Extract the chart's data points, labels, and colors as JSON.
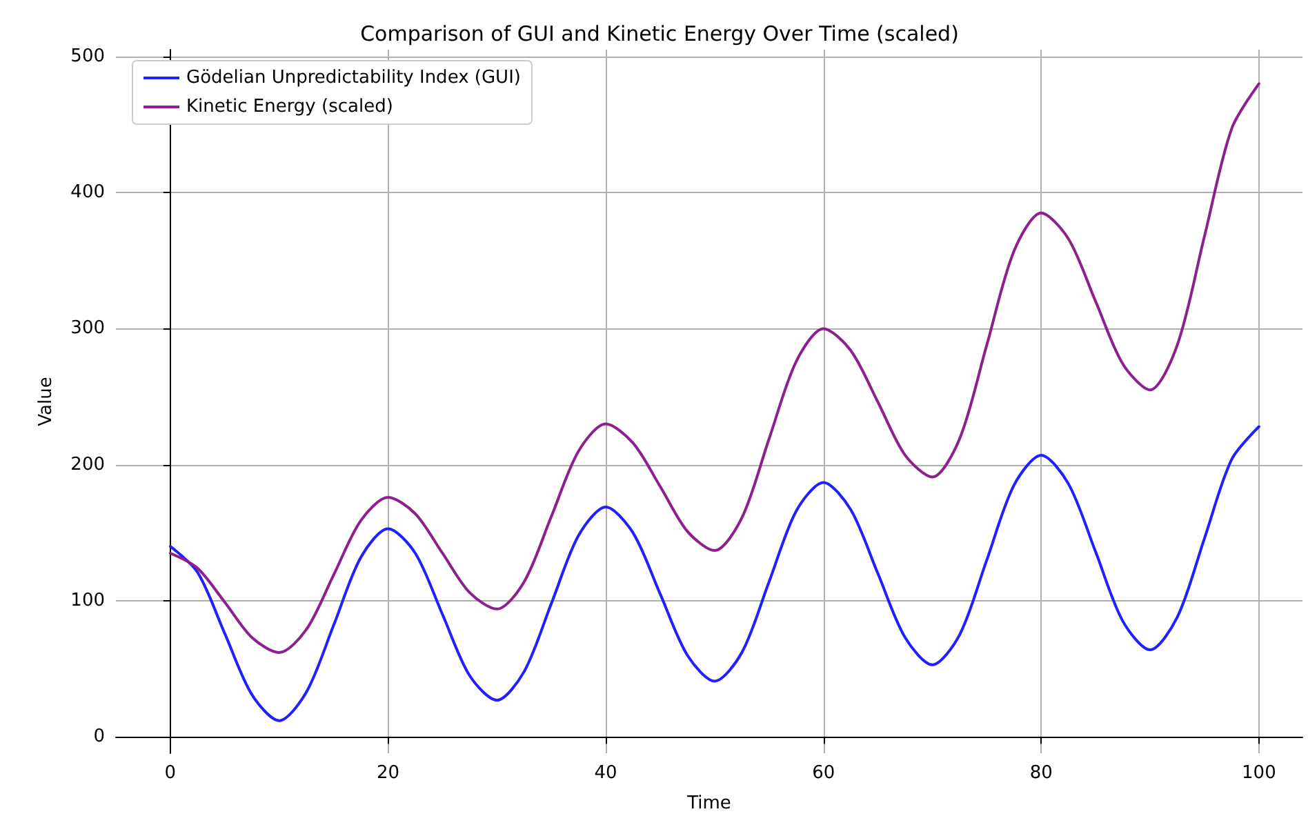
{
  "chart_data": {
    "type": "line",
    "title": "Comparison of GUI and Kinetic Energy Over Time (scaled)",
    "xlabel": "Time",
    "ylabel": "Value",
    "x": [
      0,
      2.5,
      5,
      7.5,
      10,
      12.5,
      15,
      17.5,
      20,
      22.5,
      25,
      27.5,
      30,
      32.5,
      35,
      37.5,
      40,
      42.5,
      45,
      47.5,
      50,
      52.5,
      55,
      57.5,
      60,
      62.5,
      65,
      67.5,
      70,
      72.5,
      75,
      77.5,
      80,
      82.5,
      85,
      87.5,
      90,
      92.5,
      95,
      97.5,
      100
    ],
    "series": [
      {
        "name": "Gödelian Unpredictability Index (GUI)",
        "color": "#2020ff",
        "values": [
          140,
          121,
          76,
          31,
          12,
          33,
          82,
          132,
          153,
          135,
          90,
          45,
          27,
          48,
          98,
          148,
          169,
          150,
          105,
          60,
          41,
          62,
          114,
          166,
          187,
          167,
          120,
          73,
          53,
          75,
          130,
          185,
          207,
          186,
          136,
          85,
          64,
          88,
          146,
          204,
          228
        ]
      },
      {
        "name": "Kinetic Energy (scaled)",
        "color": "#8e1f8e",
        "values": [
          135,
          124,
          99,
          73,
          62,
          79,
          119,
          159,
          176,
          164,
          135,
          106,
          94,
          114,
          162,
          210,
          230,
          216,
          184,
          151,
          137,
          161,
          219,
          276,
          300,
          284,
          246,
          207,
          191,
          219,
          288,
          357,
          385,
          366,
          320,
          274,
          255,
          288,
          368,
          447,
          480
        ]
      }
    ],
    "xlim": [
      -5,
      104
    ],
    "xticks": [
      0,
      20,
      40,
      60,
      80,
      100
    ],
    "ylim": [
      -12,
      505
    ],
    "yticks": [
      0,
      100,
      200,
      300,
      400,
      500
    ],
    "grid": true,
    "legend": "top left",
    "marker": "none",
    "line_style": "solid"
  }
}
